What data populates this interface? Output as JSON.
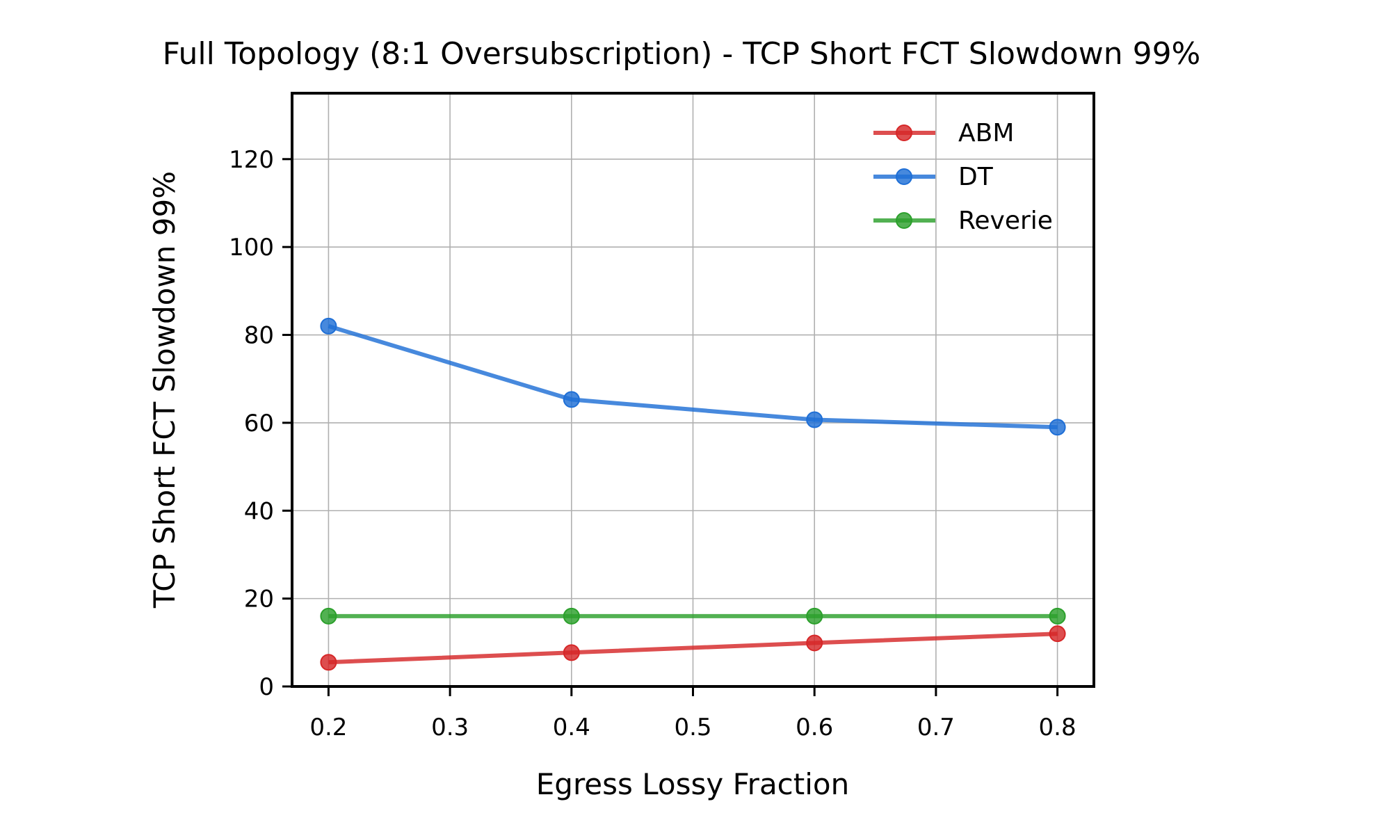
{
  "chart_data": {
    "type": "line",
    "title": "Full Topology (8:1 Oversubscription) - TCP Short FCT Slowdown 99%",
    "xlabel": "Egress Lossy Fraction",
    "ylabel": "TCP Short FCT Slowdown 99%",
    "xlim": [
      0.17,
      0.83
    ],
    "ylim": [
      0,
      135
    ],
    "xticks": [
      0.2,
      0.3,
      0.4,
      0.5,
      0.6,
      0.7,
      0.8
    ],
    "xtick_labels": [
      "0.2",
      "0.3",
      "0.4",
      "0.5",
      "0.6",
      "0.7",
      "0.8"
    ],
    "yticks": [
      0,
      20,
      40,
      60,
      80,
      100,
      120
    ],
    "ytick_labels": [
      "0",
      "20",
      "40",
      "60",
      "80",
      "100",
      "120"
    ],
    "grid": true,
    "legend_position": "top-right",
    "x": [
      0.2,
      0.4,
      0.6,
      0.8
    ],
    "series": [
      {
        "name": "ABM",
        "color": "#d62728",
        "values": [
          5.5,
          7.7,
          9.9,
          12.0
        ]
      },
      {
        "name": "DT",
        "color": "#1f6fd6",
        "values": [
          82.0,
          65.3,
          60.7,
          59.0
        ]
      },
      {
        "name": "Reverie",
        "color": "#2ca02c",
        "values": [
          16.0,
          16.0,
          16.0,
          16.0
        ]
      }
    ]
  }
}
